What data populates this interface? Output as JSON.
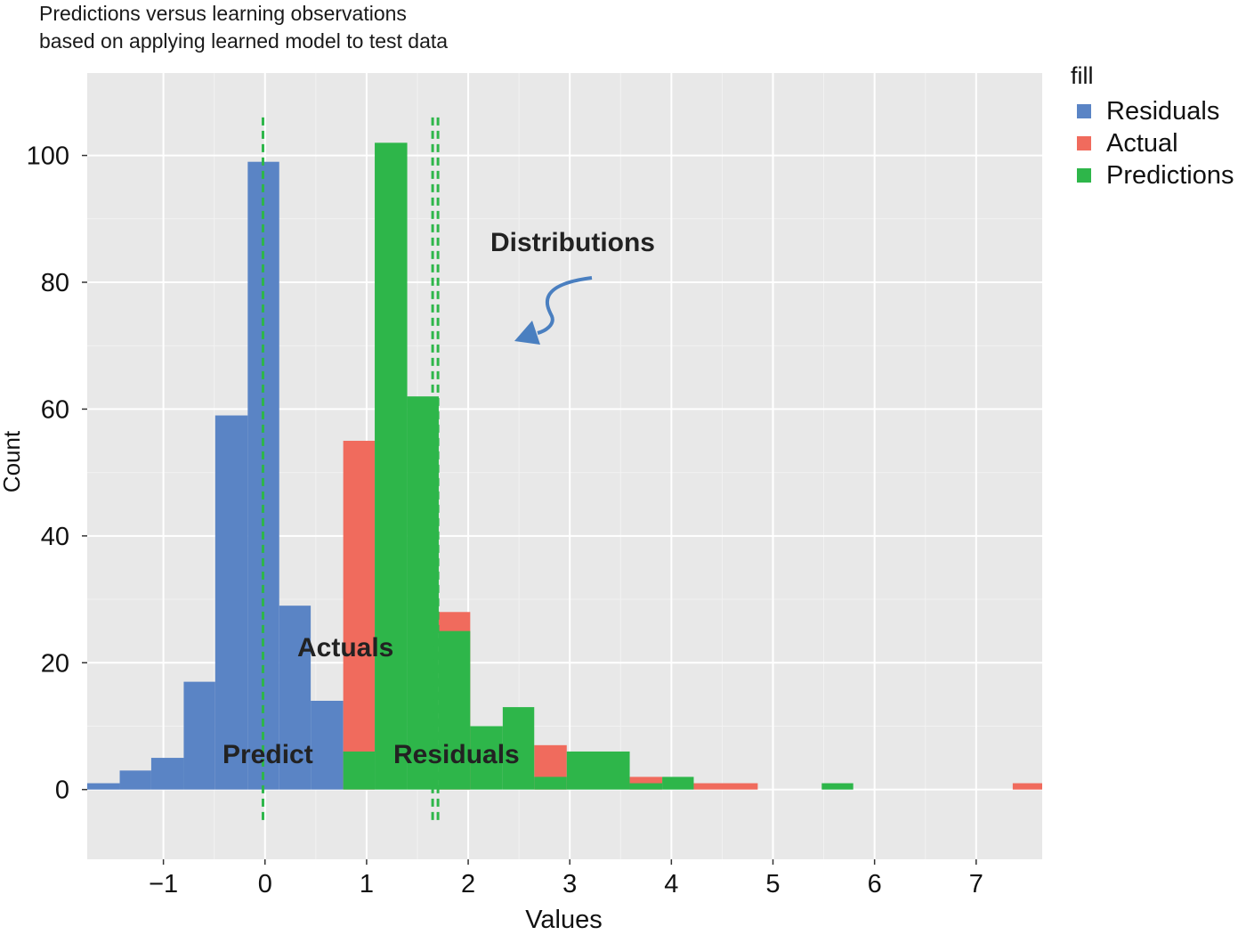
{
  "title": "Predictions versus learning observations",
  "subtitle": "based on applying learned model to test data",
  "legend": {
    "title": "fill",
    "items": [
      {
        "label": "Residuals",
        "color": "#5a84c5"
      },
      {
        "label": "Actual",
        "color": "#f06b5d"
      },
      {
        "label": "Predictions",
        "color": "#2eb64a"
      }
    ]
  },
  "annotations": {
    "distributions": "Distributions",
    "actuals": "Actuals",
    "predict": "Predict",
    "residuals": "Residuals"
  },
  "chart_data": {
    "type": "bar",
    "xlabel": "Values",
    "ylabel": "Count",
    "xlim": [
      -1.75,
      7.65
    ],
    "ylim": [
      -11,
      113
    ],
    "xticks": [
      -1,
      0,
      1,
      2,
      3,
      4,
      5,
      6,
      7
    ],
    "xtick_labels": [
      "−1",
      "0",
      "1",
      "2",
      "3",
      "4",
      "5",
      "6",
      "7"
    ],
    "yticks": [
      0,
      20,
      40,
      60,
      80,
      100
    ],
    "grid": true,
    "legend_position": "right",
    "bin_width": 0.314,
    "series": [
      {
        "name": "Residuals",
        "color": "#5a84c5",
        "bins": [
          {
            "x0": -1.75,
            "x1": -1.43,
            "count": 1
          },
          {
            "x0": -1.43,
            "x1": -1.12,
            "count": 3
          },
          {
            "x0": -1.12,
            "x1": -0.8,
            "count": 5
          },
          {
            "x0": -0.8,
            "x1": -0.49,
            "count": 17
          },
          {
            "x0": -0.49,
            "x1": -0.17,
            "count": 59
          },
          {
            "x0": -0.17,
            "x1": 0.14,
            "count": 99
          },
          {
            "x0": 0.14,
            "x1": 0.45,
            "count": 29
          },
          {
            "x0": 0.45,
            "x1": 0.77,
            "count": 14
          }
        ]
      },
      {
        "name": "Actual",
        "color": "#f06b5d",
        "bins": [
          {
            "x0": 0.77,
            "x1": 1.08,
            "count": 55
          },
          {
            "x0": 1.71,
            "x1": 2.02,
            "count": 28
          },
          {
            "x0": 2.65,
            "x1": 2.97,
            "count": 7
          },
          {
            "x0": 3.59,
            "x1": 3.91,
            "count": 2
          },
          {
            "x0": 4.22,
            "x1": 4.85,
            "count": 1
          },
          {
            "x0": 7.36,
            "x1": 7.65,
            "count": 1
          }
        ]
      },
      {
        "name": "Predictions",
        "color": "#2eb64a",
        "bins": [
          {
            "x0": 0.77,
            "x1": 1.08,
            "count": 6
          },
          {
            "x0": 1.08,
            "x1": 1.4,
            "count": 102
          },
          {
            "x0": 1.4,
            "x1": 1.71,
            "count": 62
          },
          {
            "x0": 1.71,
            "x1": 2.02,
            "count": 25
          },
          {
            "x0": 2.02,
            "x1": 2.34,
            "count": 10
          },
          {
            "x0": 2.34,
            "x1": 2.65,
            "count": 13
          },
          {
            "x0": 2.65,
            "x1": 2.97,
            "count": 2
          },
          {
            "x0": 2.97,
            "x1": 3.59,
            "count": 6
          },
          {
            "x0": 3.59,
            "x1": 3.91,
            "count": 1
          },
          {
            "x0": 3.91,
            "x1": 4.22,
            "count": 2
          },
          {
            "x0": 5.48,
            "x1": 5.79,
            "count": 1
          }
        ]
      }
    ],
    "reference_lines": [
      {
        "x": -0.02,
        "color": "#2eb64a",
        "style": "dashed"
      },
      {
        "x": 1.65,
        "color": "#2eb64a",
        "style": "dashed"
      }
    ]
  }
}
